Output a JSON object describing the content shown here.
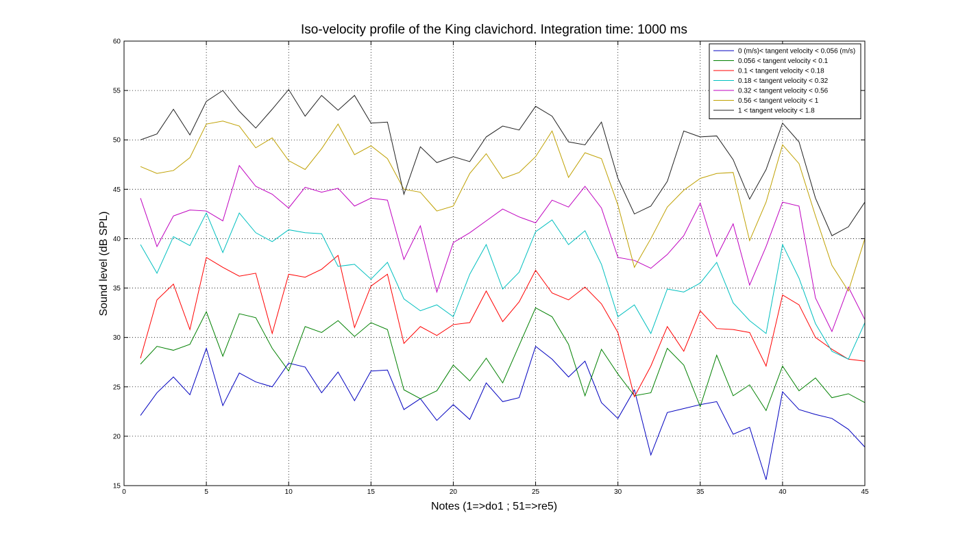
{
  "chart_data": {
    "type": "line",
    "title": "Iso-velocity profile of the King clavichord. Integration time: 1000 ms",
    "xlabel": "Notes (1=>do1 ; 51=>re5)",
    "ylabel": "Sound level (dB SPL)",
    "xlim": [
      0,
      45
    ],
    "ylim": [
      15,
      60
    ],
    "xticks": [
      0,
      5,
      10,
      15,
      20,
      25,
      30,
      35,
      40,
      45
    ],
    "yticks": [
      15,
      20,
      25,
      30,
      35,
      40,
      45,
      50,
      55,
      60
    ],
    "grid": true,
    "legend_position": "top-right",
    "x": [
      1,
      2,
      3,
      4,
      5,
      6,
      7,
      8,
      9,
      10,
      11,
      12,
      13,
      14,
      15,
      16,
      17,
      18,
      19,
      20,
      21,
      22,
      23,
      24,
      25,
      26,
      27,
      28,
      29,
      30,
      31,
      32,
      33,
      34,
      35,
      36,
      37,
      38,
      39,
      40,
      41,
      42,
      43,
      44,
      45
    ],
    "series": [
      {
        "name": "0 (m/s)< tangent velocity < 0.056 (m/s)",
        "color": "#0000bf",
        "values": [
          22.1,
          24.4,
          26.0,
          24.2,
          28.9,
          23.1,
          26.4,
          25.5,
          25.0,
          27.4,
          27.0,
          24.4,
          26.5,
          23.6,
          26.6,
          26.7,
          22.7,
          23.8,
          21.6,
          23.2,
          21.7,
          25.4,
          23.5,
          23.9,
          29.1,
          27.8,
          26.0,
          27.6,
          23.4,
          21.8,
          24.7,
          18.1,
          22.4,
          22.8,
          23.2,
          23.5,
          20.2,
          20.9,
          15.6,
          24.5,
          22.7,
          22.2,
          21.8,
          20.7,
          18.9
        ]
      },
      {
        "name": "0.056 < tangent velocity < 0.1",
        "color": "#008000",
        "values": [
          27.3,
          29.1,
          28.7,
          29.3,
          32.6,
          28.1,
          32.4,
          32.0,
          28.9,
          26.6,
          31.1,
          30.5,
          31.7,
          30.1,
          31.5,
          30.8,
          24.7,
          23.8,
          24.6,
          27.2,
          25.6,
          27.9,
          25.4,
          29.2,
          33.0,
          32.1,
          29.3,
          24.1,
          28.8,
          26.3,
          24.1,
          24.4,
          28.9,
          27.2,
          23.0,
          28.2,
          24.1,
          25.2,
          22.6,
          27.1,
          24.6,
          25.9,
          23.9,
          24.3,
          23.4
        ]
      },
      {
        "name": "0.1 < tangent velocity < 0.18",
        "color": "#ff0000",
        "values": [
          27.9,
          33.8,
          35.4,
          30.8,
          38.1,
          37.1,
          36.2,
          36.5,
          30.4,
          36.4,
          36.1,
          36.9,
          38.3,
          31.0,
          35.2,
          36.4,
          29.4,
          31.1,
          30.2,
          31.3,
          31.5,
          34.7,
          31.6,
          33.6,
          36.8,
          34.5,
          33.8,
          35.1,
          33.4,
          30.5,
          24.0,
          27.1,
          31.1,
          28.6,
          32.7,
          30.9,
          30.8,
          30.5,
          27.1,
          34.3,
          33.3,
          30.0,
          28.8,
          27.8,
          27.6
        ]
      },
      {
        "name": "0.18 < tangent velocity < 0.32",
        "color": "#00bfbf",
        "values": [
          39.4,
          36.5,
          40.2,
          39.3,
          42.6,
          38.6,
          42.6,
          40.6,
          39.7,
          40.9,
          40.6,
          40.5,
          37.2,
          37.4,
          35.9,
          37.6,
          33.9,
          32.7,
          33.3,
          32.1,
          36.4,
          39.4,
          34.9,
          36.6,
          40.7,
          41.9,
          39.4,
          40.8,
          37.4,
          32.1,
          33.3,
          30.4,
          34.9,
          34.6,
          35.5,
          37.6,
          33.5,
          31.7,
          30.4,
          39.4,
          36.0,
          31.4,
          28.6,
          27.8,
          31.5
        ]
      },
      {
        "name": "0.32 < tangent velocity < 0.56",
        "color": "#bf00bf",
        "values": [
          44.1,
          39.2,
          42.3,
          42.9,
          42.8,
          41.8,
          47.4,
          45.3,
          44.5,
          43.1,
          45.2,
          44.7,
          45.1,
          43.3,
          44.1,
          43.9,
          37.9,
          41.3,
          34.6,
          39.6,
          40.6,
          41.8,
          43.0,
          42.2,
          41.6,
          43.9,
          43.2,
          45.3,
          43.1,
          38.1,
          37.8,
          37.0,
          38.4,
          40.3,
          43.6,
          38.2,
          41.5,
          35.3,
          39.2,
          43.7,
          43.3,
          34.0,
          30.6,
          35.1,
          31.8
        ]
      },
      {
        "name": "0.56 < tangent velocity < 1",
        "color": "#bfa000",
        "values": [
          47.3,
          46.6,
          46.9,
          48.2,
          51.6,
          51.9,
          51.4,
          49.2,
          50.2,
          47.9,
          47.0,
          49.1,
          51.6,
          48.5,
          49.4,
          48.1,
          45.0,
          44.7,
          42.8,
          43.3,
          46.6,
          48.6,
          46.1,
          46.7,
          48.3,
          50.9,
          46.2,
          48.7,
          48.1,
          43.4,
          37.1,
          40.0,
          43.2,
          44.9,
          46.1,
          46.6,
          46.7,
          39.8,
          43.7,
          49.5,
          47.6,
          42.3,
          37.3,
          34.7,
          40.0
        ]
      },
      {
        "name": "1 < tangent velocity < 1.8",
        "color": "#202020",
        "values": [
          50.0,
          50.6,
          53.1,
          50.5,
          53.9,
          55.0,
          52.9,
          51.2,
          53.1,
          55.1,
          52.4,
          54.5,
          53.0,
          54.5,
          51.7,
          51.8,
          44.5,
          49.3,
          47.7,
          48.3,
          47.8,
          50.3,
          51.4,
          51.0,
          53.4,
          52.4,
          49.8,
          49.5,
          51.8,
          46.1,
          42.5,
          43.3,
          45.8,
          50.9,
          50.3,
          50.4,
          48.0,
          44.0,
          47.0,
          51.7,
          49.8,
          44.1,
          40.3,
          41.2,
          43.7
        ]
      }
    ]
  }
}
